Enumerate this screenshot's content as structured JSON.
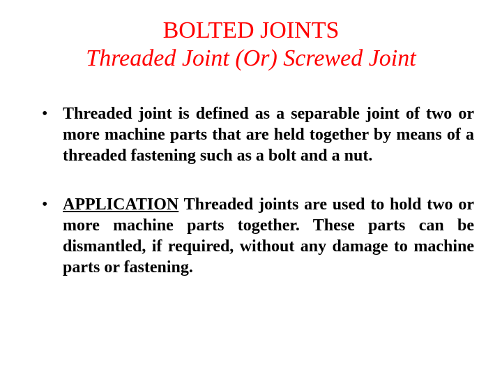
{
  "colors": {
    "title_color": "#ff0000",
    "text_color": "#000000",
    "background_color": "#ffffff"
  },
  "typography": {
    "title_fontsize": 34,
    "subtitle_fontsize": 34,
    "body_fontsize": 24,
    "font_family": "Times New Roman"
  },
  "heading": {
    "title": "BOLTED JOINTS",
    "subtitle": "Threaded Joint (Or) Screwed Joint"
  },
  "bullets": [
    {
      "marker": "•",
      "text": "Threaded joint is defined as a separable joint of two or more machine parts that are held together by means of a threaded fastening such as a bolt and a nut."
    },
    {
      "marker": "•",
      "label": "APPLICATION",
      "text": " Threaded joints are used to hold two or more machine parts together. These parts can be dismantled, if required, without any damage to machine parts or fastening."
    }
  ]
}
